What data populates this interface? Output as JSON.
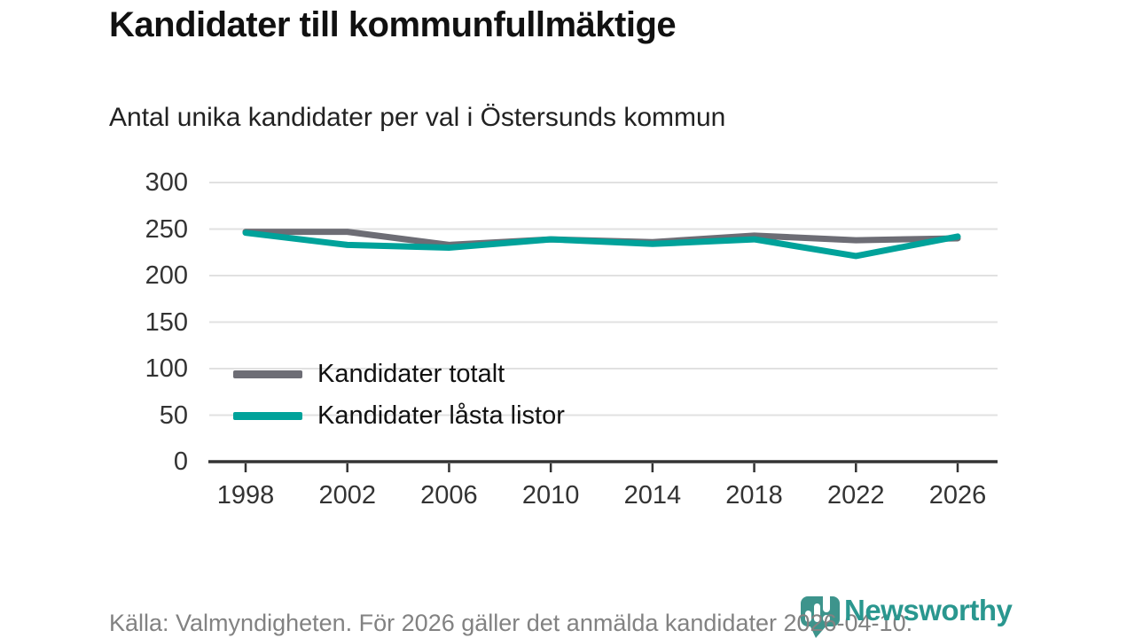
{
  "header": {
    "title": "Kandidater till kommunfullmäktige",
    "subtitle": "Antal unika kandidater per val i Östersunds kommun"
  },
  "chart_data": {
    "type": "line",
    "title": "Kandidater till kommunfullmäktige",
    "subtitle": "Antal unika kandidater per val i Östersunds kommun",
    "x": [
      1998,
      2002,
      2006,
      2010,
      2014,
      2018,
      2022,
      2026
    ],
    "series": [
      {
        "name": "Kandidater totalt",
        "color": "#6d6d75",
        "values": [
          247,
          247,
          233,
          239,
          236,
          243,
          238,
          240
        ]
      },
      {
        "name": "Kandidater låsta listor",
        "color": "#00a29a",
        "values": [
          246,
          233,
          230,
          239,
          234,
          239,
          221,
          242
        ]
      }
    ],
    "xlabel": "",
    "ylabel": "",
    "ylim": [
      0,
      300
    ],
    "yticks": [
      0,
      50,
      100,
      150,
      200,
      250,
      300
    ],
    "grid": true,
    "legend_position": "inside-left"
  },
  "footer": {
    "source": "Källa: Valmyndigheten. För 2026 gäller det anmälda kandidater 2026-04-10."
  },
  "logo": {
    "wordmark": "Newsworthy",
    "icon": "newsworthy-pin-icon",
    "icon_color": "#3d948c",
    "wordmark_color": "#2a978f"
  },
  "colors": {
    "axis": "#333333",
    "grid": "#e1e1e1",
    "tick_label": "#333333"
  }
}
